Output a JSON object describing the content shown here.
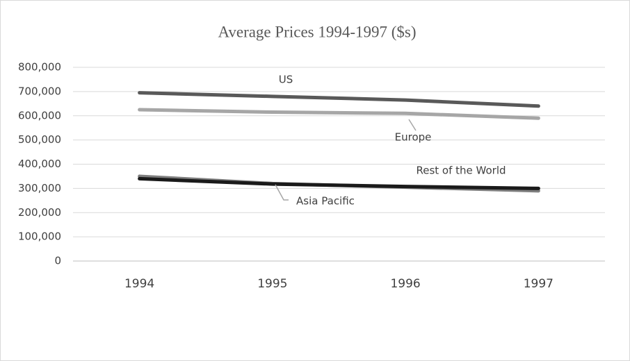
{
  "chart_data": {
    "type": "line",
    "title": "Average Prices 1994-1997 ($s)",
    "categories": [
      "1994",
      "1995",
      "1996",
      "1997"
    ],
    "series": [
      {
        "name": "US",
        "color": "#595959",
        "values": [
          695000,
          680000,
          665000,
          640000
        ]
      },
      {
        "name": "Europe",
        "color": "#a6a6a6",
        "values": [
          625000,
          615000,
          610000,
          590000
        ]
      },
      {
        "name": "Asia Pacific",
        "color": "#7f7f7f",
        "values": [
          350000,
          320000,
          305000,
          290000
        ]
      },
      {
        "name": "Rest of the World",
        "color": "#1a1a1a",
        "values": [
          340000,
          318000,
          308000,
          300000
        ]
      }
    ],
    "ylim": [
      0,
      800000
    ],
    "yticks": [
      0,
      {
        "value": 100000,
        "label": "100,000"
      },
      {
        "value": 200000,
        "label": "200,000"
      },
      {
        "value": 300000,
        "label": "300,000"
      },
      {
        "value": 400000,
        "label": "400,000"
      },
      {
        "value": 500000,
        "label": "500,000"
      },
      {
        "value": 600000,
        "label": "600,000"
      },
      {
        "value": 700000,
        "label": "700,000"
      },
      {
        "value": 800000,
        "label": "800,000"
      }
    ],
    "grid": true
  }
}
